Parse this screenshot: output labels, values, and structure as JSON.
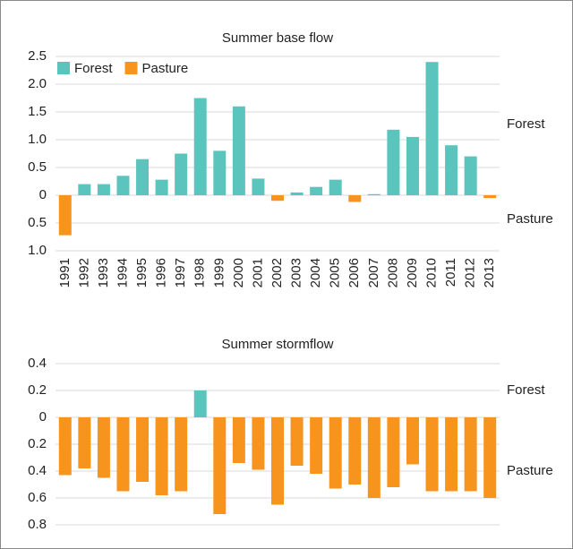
{
  "chart_data": [
    {
      "type": "bar",
      "title": "Summer base flow",
      "categories": [
        "1991",
        "1992",
        "1993",
        "1994",
        "1995",
        "1996",
        "1997",
        "1998",
        "1999",
        "2000",
        "2001",
        "2002",
        "2003",
        "2004",
        "2005",
        "2006",
        "2007",
        "2008",
        "2009",
        "2010",
        "2011",
        "2012",
        "2013"
      ],
      "series": [
        {
          "name": "Forest",
          "color": "#5bc4bc",
          "values": [
            null,
            0.2,
            0.2,
            0.35,
            0.65,
            0.28,
            0.75,
            1.75,
            0.8,
            1.6,
            0.3,
            null,
            0.05,
            0.15,
            0.28,
            null,
            0.02,
            1.18,
            1.05,
            2.4,
            0.9,
            0.7,
            null
          ]
        },
        {
          "name": "Pasture",
          "color": "#f7941d",
          "values": [
            -0.72,
            null,
            null,
            null,
            null,
            null,
            null,
            null,
            null,
            null,
            null,
            -0.1,
            null,
            null,
            null,
            -0.12,
            null,
            null,
            null,
            null,
            null,
            null,
            -0.05
          ]
        }
      ],
      "ylim": [
        -1.0,
        2.5
      ],
      "yticks": [
        2.5,
        {
          "value": 2.0,
          "label": "2.0"
        },
        1.5,
        {
          "value": 1.0,
          "label": "1.0"
        },
        0.5,
        0,
        {
          "value": -0.5,
          "label": "0.5"
        },
        {
          "value": -1.0,
          "label": "1.0"
        }
      ],
      "annotations": [
        "Forest",
        "Pasture"
      ],
      "grid": true,
      "legend": "top-left"
    },
    {
      "type": "bar",
      "title": "Summer stormflow",
      "values": [
        -0.43,
        -0.38,
        -0.45,
        -0.55,
        -0.48,
        -0.58,
        -0.55,
        0.2,
        -0.72,
        -0.34,
        -0.39,
        -0.65,
        -0.36,
        -0.42,
        -0.53,
        -0.5,
        -0.6,
        -0.52,
        -0.35,
        -0.55,
        -0.55,
        -0.55,
        -0.6
      ],
      "color_positive": "#5bc4bc",
      "color_negative": "#f7941d",
      "ylim": [
        -0.8,
        0.4
      ],
      "yticks": [
        0.4,
        0.2,
        0,
        {
          "value": -0.2,
          "label": "0.2"
        },
        {
          "value": -0.4,
          "label": "0.4"
        },
        {
          "value": -0.6,
          "label": "0.6"
        },
        {
          "value": -0.8,
          "label": "0.8"
        }
      ],
      "annotations": [
        "Forest",
        "Pasture"
      ],
      "grid": true
    }
  ]
}
